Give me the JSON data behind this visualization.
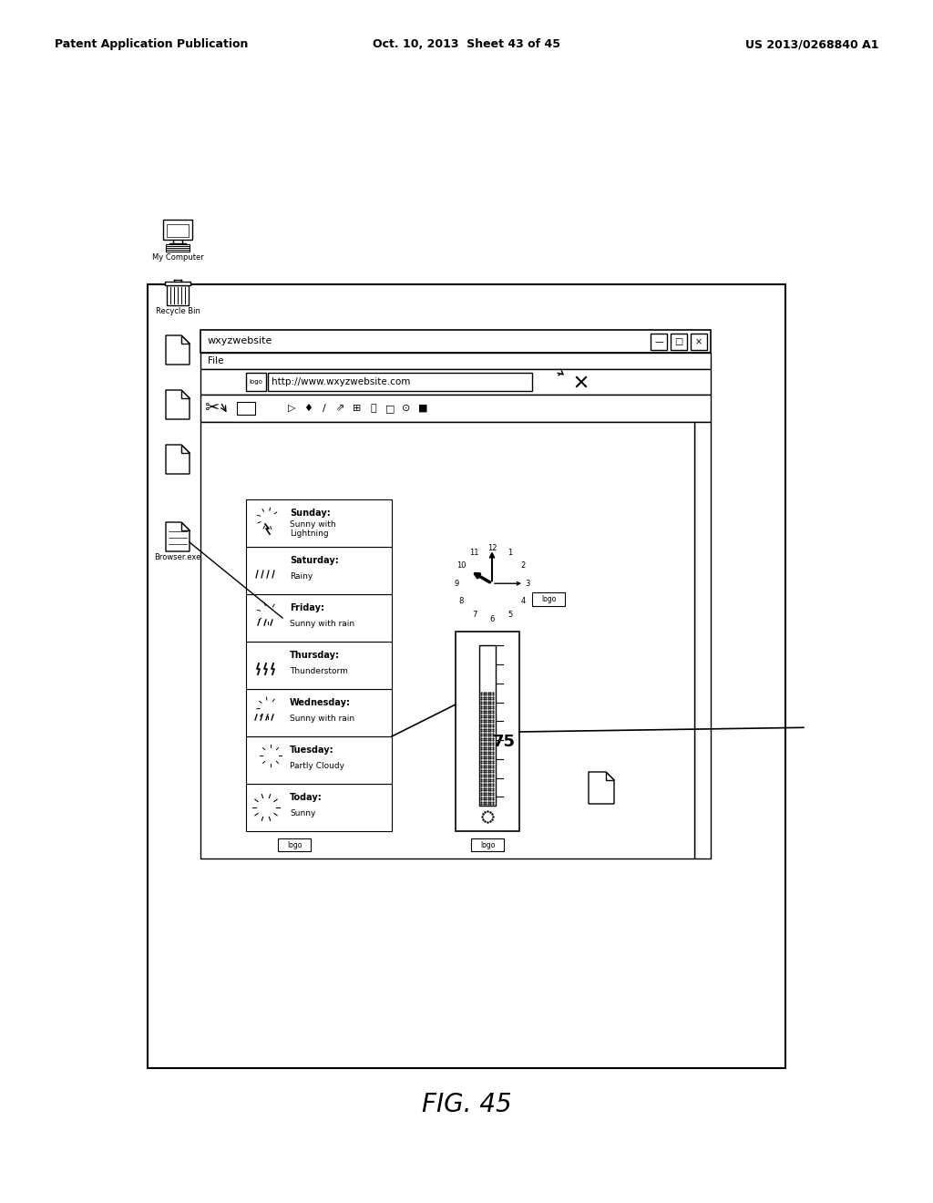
{
  "title": "FIG. 45",
  "header_left": "Patent Application Publication",
  "header_center": "Oct. 10, 2013  Sheet 43 of 45",
  "header_right": "US 2013/0268840 A1",
  "bg_color": "#ffffff",
  "browser_title": "wxyzwebsite",
  "browser_menu": "File",
  "browser_url": "http://www.wxyzwebsite.com",
  "weather_days": [
    {
      "day": "Today:",
      "condition": "Sunny"
    },
    {
      "day": "Tuesday:",
      "condition": "Partly Cloudy"
    },
    {
      "day": "Wednesday:",
      "condition": "Sunny with rain"
    },
    {
      "day": "Thursday:",
      "condition": "Thunderstorm"
    },
    {
      "day": "Friday:",
      "condition": "Sunny with rain"
    },
    {
      "day": "Saturday:",
      "condition": "Rainy"
    },
    {
      "day": "Sunday:",
      "condition": "Sunny with\nLightning"
    }
  ],
  "fig_label": "FIG. 45"
}
